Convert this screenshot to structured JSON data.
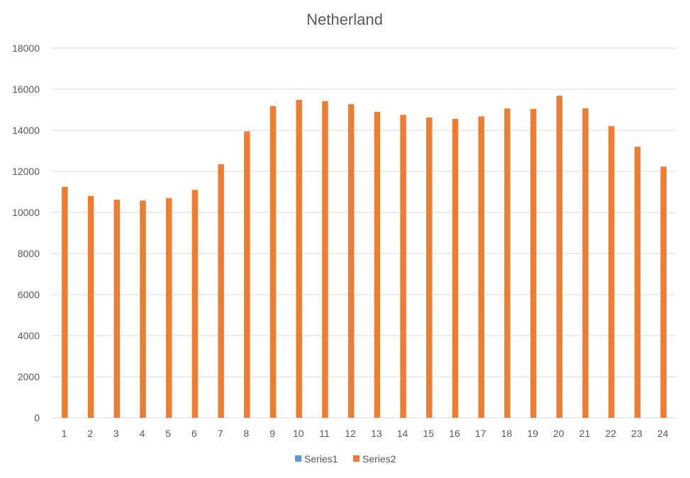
{
  "chart_data": {
    "type": "bar",
    "title": "Netherland",
    "xlabel": "",
    "ylabel": "",
    "categories": [
      "1",
      "2",
      "3",
      "4",
      "5",
      "6",
      "7",
      "8",
      "9",
      "10",
      "11",
      "12",
      "13",
      "14",
      "15",
      "16",
      "17",
      "18",
      "19",
      "20",
      "21",
      "22",
      "23",
      "24"
    ],
    "series": [
      {
        "name": "Series1",
        "color": "#5b9bd5",
        "values": [
          0,
          0,
          0,
          0,
          0,
          0,
          0,
          0,
          0,
          0,
          0,
          0,
          0,
          0,
          0,
          0,
          0,
          0,
          0,
          0,
          0,
          0,
          0,
          0
        ]
      },
      {
        "name": "Series2",
        "color": "#ed7d31",
        "values": [
          11250,
          10800,
          10620,
          10580,
          10700,
          11100,
          12350,
          13950,
          15180,
          15480,
          15420,
          15270,
          14900,
          14750,
          14620,
          14560,
          14680,
          15060,
          15040,
          15680,
          15070,
          14200,
          13200,
          12230
        ]
      }
    ],
    "ylim": [
      0,
      18000
    ],
    "yticks": [
      0,
      2000,
      4000,
      6000,
      8000,
      10000,
      12000,
      14000,
      16000,
      18000
    ],
    "grid": true,
    "legend_position": "bottom"
  }
}
